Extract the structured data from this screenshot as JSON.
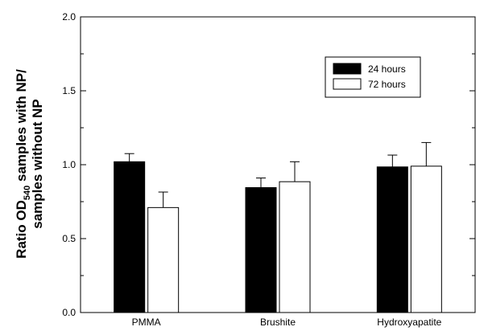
{
  "chart_data": {
    "type": "bar",
    "categories": [
      "PMMA",
      "Brushite",
      "Hydroxyapatite"
    ],
    "series": [
      {
        "name": "24 hours",
        "values": [
          1.02,
          0.845,
          0.985
        ],
        "errors": [
          0.055,
          0.065,
          0.08
        ],
        "fill": "#000000"
      },
      {
        "name": "72 hours",
        "values": [
          0.71,
          0.885,
          0.99
        ],
        "errors": [
          0.105,
          0.135,
          0.16
        ],
        "fill": "#ffffff"
      }
    ],
    "ylabel_lines": [
      "Ratio OD",
      "540",
      " samples with NP/",
      "samples without NP"
    ],
    "ylim": [
      0,
      2.0
    ],
    "yticks": [
      "0.0",
      "0.5",
      "1.0",
      "1.5",
      "2.0"
    ],
    "grid": false,
    "legend_position": "top-right"
  }
}
